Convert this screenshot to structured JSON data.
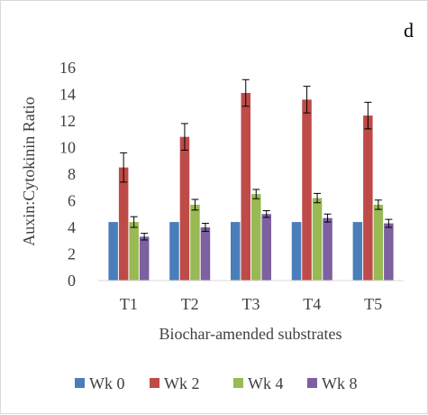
{
  "chart_data": {
    "type": "bar",
    "panel_label": "d",
    "xlabel": "Biochar-amended substrates",
    "ylabel": "Auxin:Cytokinin Ratio",
    "ylim": [
      0,
      16
    ],
    "yticks": [
      0,
      2,
      4,
      6,
      8,
      10,
      12,
      14,
      16
    ],
    "grid": false,
    "legend_position": "bottom",
    "categories": [
      "T1",
      "T2",
      "T3",
      "T4",
      "T5"
    ],
    "series": [
      {
        "name": "Wk 0",
        "color": "#4a7ebb",
        "values": [
          4.4,
          4.4,
          4.4,
          4.4,
          4.4
        ],
        "errors": [
          0,
          0,
          0,
          0,
          0
        ]
      },
      {
        "name": "Wk 2",
        "color": "#be4b48",
        "values": [
          8.5,
          10.8,
          14.1,
          13.6,
          12.4
        ],
        "errors": [
          1.1,
          1.0,
          1.0,
          1.0,
          1.0
        ]
      },
      {
        "name": "Wk 4",
        "color": "#98b954",
        "values": [
          4.4,
          5.7,
          6.5,
          6.2,
          5.7
        ],
        "errors": [
          0.4,
          0.4,
          0.35,
          0.35,
          0.35
        ]
      },
      {
        "name": "Wk 8",
        "color": "#7d60a0",
        "values": [
          3.3,
          4.0,
          5.0,
          4.7,
          4.3
        ],
        "errors": [
          0.25,
          0.3,
          0.25,
          0.3,
          0.3
        ]
      }
    ]
  }
}
